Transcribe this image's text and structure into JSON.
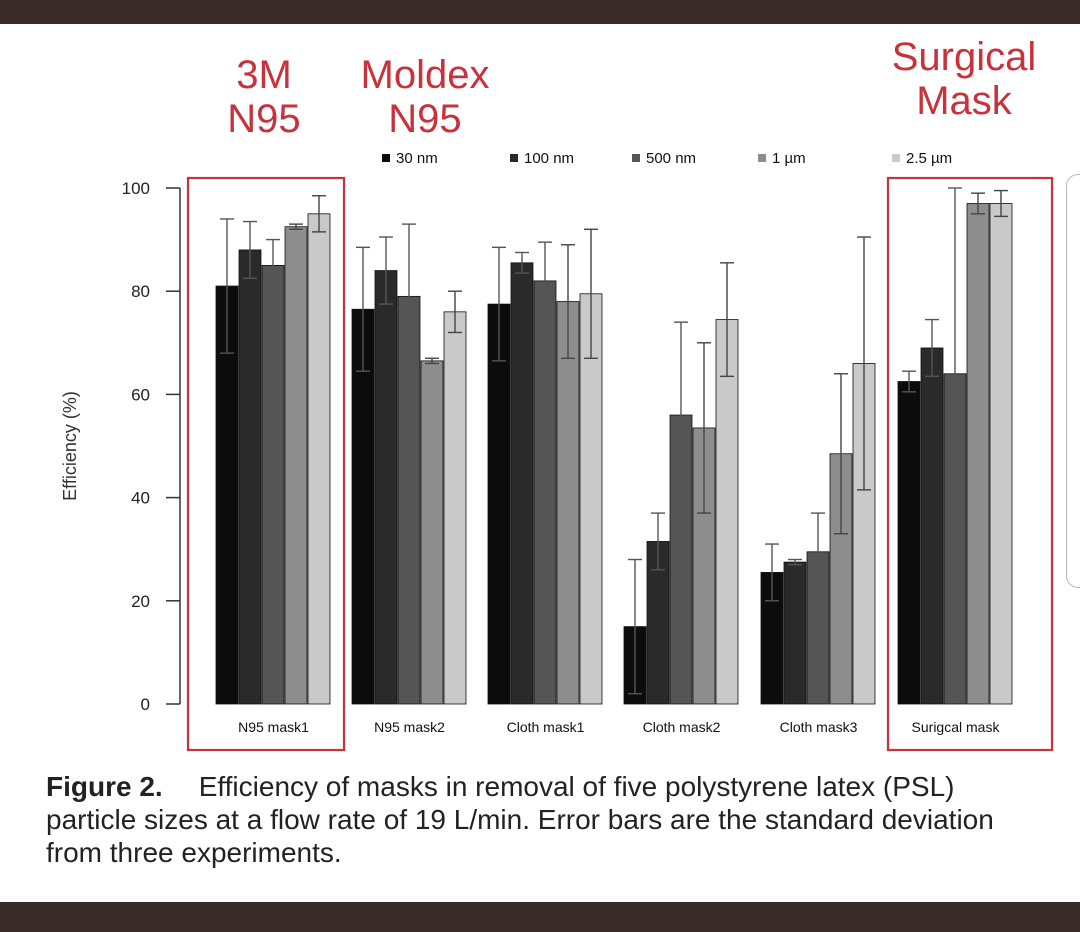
{
  "annotations": [
    {
      "id": "3m",
      "lines": [
        "3M",
        "N95"
      ]
    },
    {
      "id": "moldex",
      "lines": [
        "Moldex",
        "N95"
      ]
    },
    {
      "id": "surgical",
      "lines": [
        "Surgical",
        "Mask"
      ]
    }
  ],
  "caption": {
    "label": "Figure 2.",
    "text": "Efficiency of masks in removal of five polystyrene latex (PSL) particle sizes at a flow rate of 19 L/min. Error bars are the standard deviation from three experiments."
  },
  "colors": {
    "series": [
      "#0c0c0c",
      "#2a2a2a",
      "#555555",
      "#8d8d8d",
      "#c9c9c9"
    ],
    "highlight_box": "#c8323c"
  },
  "chart_data": {
    "type": "bar",
    "ylabel": "Efficiency (%)",
    "xlabel": "",
    "ylim": [
      0,
      100
    ],
    "yticks": [
      0,
      20,
      40,
      60,
      80,
      100
    ],
    "legend_position": "top-center",
    "categories": [
      "N95 mask1",
      "N95 mask2",
      "Cloth mask1",
      "Cloth mask2",
      "Cloth mask3",
      "Surigcal mask"
    ],
    "highlighted_categories": [
      "N95 mask1",
      "Surigcal mask"
    ],
    "series": [
      {
        "name": "30 nm",
        "values": [
          81,
          76.5,
          77.5,
          15,
          25.5,
          62.5
        ],
        "err": [
          13,
          12,
          11,
          13,
          5.5,
          2
        ]
      },
      {
        "name": "100 nm",
        "values": [
          88,
          84,
          85.5,
          31.5,
          27.5,
          69
        ],
        "err": [
          5.5,
          6.5,
          2,
          5.5,
          0.5,
          5.5
        ]
      },
      {
        "name": "500 nm",
        "values": [
          85,
          79,
          82,
          56,
          29.5,
          64
        ],
        "err": [
          5,
          14,
          7.5,
          18,
          7.5,
          36
        ]
      },
      {
        "name": "1 µm",
        "values": [
          92.5,
          66.5,
          78,
          53.5,
          48.5,
          97
        ],
        "err": [
          0.5,
          0.5,
          11,
          16.5,
          15.5,
          2
        ]
      },
      {
        "name": "2.5 µm",
        "values": [
          95,
          76,
          79.5,
          74.5,
          66,
          97
        ],
        "err": [
          3.5,
          4,
          12.5,
          11,
          24.5,
          2.5
        ]
      }
    ]
  }
}
